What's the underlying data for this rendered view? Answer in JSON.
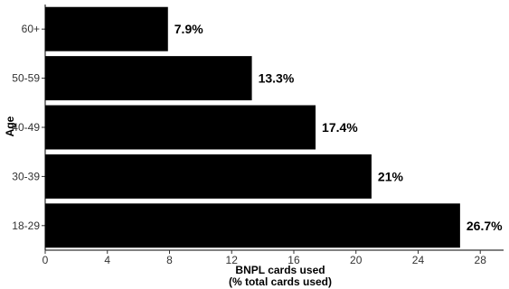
{
  "chart_data": {
    "type": "bar",
    "orientation": "horizontal",
    "categories": [
      "60+",
      "50-59",
      "40-49",
      "30-39",
      "18-29"
    ],
    "values": [
      7.9,
      13.3,
      17.4,
      21,
      26.7
    ],
    "data_labels": [
      "7.9%",
      "13.3%",
      "17.4%",
      "21%",
      "26.7%"
    ],
    "xlabel_lines": [
      "BNPL cards used",
      "(% total cards used)"
    ],
    "ylabel": "Age",
    "xlim": [
      0,
      29.5
    ],
    "xticks": [
      0,
      4,
      8,
      12,
      16,
      20,
      24,
      28
    ],
    "bar_color": "#000000",
    "grid": false,
    "legend": "none"
  }
}
